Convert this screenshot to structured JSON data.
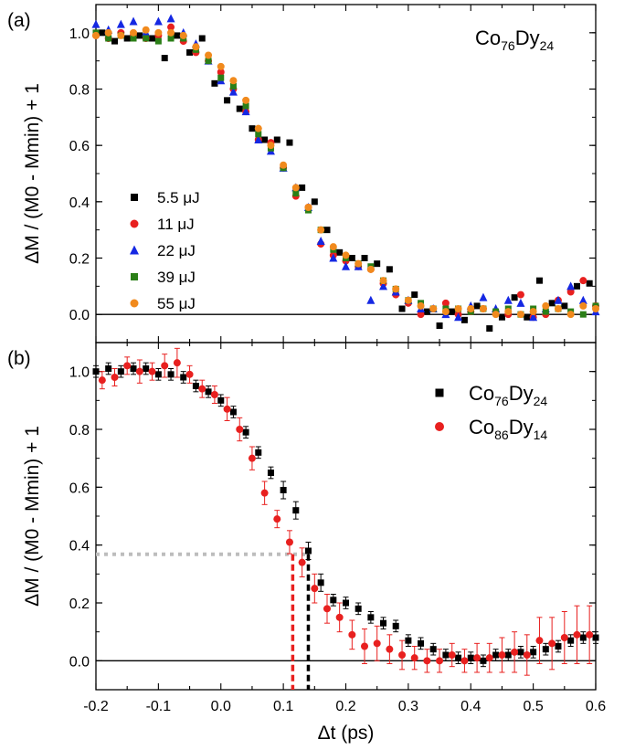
{
  "chart_data": [
    {
      "panel_label": "(a)",
      "type": "scatter",
      "annotation": {
        "base1": "Co",
        "sub1": "76",
        "base2": "Dy",
        "sub2": "24"
      },
      "ylabel": "ΔM / (M0 - Mmin) + 1",
      "xlim": [
        -0.2,
        0.6
      ],
      "ylim": [
        -0.1,
        1.1
      ],
      "yticks": [
        0.0,
        0.2,
        0.4,
        0.6,
        0.8,
        1.0
      ],
      "ytick_labels": [
        "0.0",
        "0.2",
        "0.4",
        "0.6",
        "0.8",
        "1.0"
      ],
      "zero_line": true,
      "legend_position": "middle-left",
      "series": [
        {
          "name": "5.5 μJ",
          "color": "#000000",
          "marker": "square",
          "x": [
            -0.19,
            -0.17,
            -0.15,
            -0.13,
            -0.11,
            -0.09,
            -0.07,
            -0.05,
            -0.03,
            -0.01,
            0.01,
            0.03,
            0.05,
            0.07,
            0.09,
            0.11,
            0.13,
            0.15,
            0.17,
            0.19,
            0.21,
            0.23,
            0.25,
            0.27,
            0.29,
            0.31,
            0.33,
            0.35,
            0.37,
            0.39,
            0.41,
            0.43,
            0.45,
            0.47,
            0.49,
            0.51,
            0.53,
            0.55,
            0.57,
            0.59
          ],
          "y": [
            1.0,
            0.97,
            0.98,
            0.99,
            0.98,
            0.91,
            0.99,
            0.93,
            0.98,
            0.82,
            0.76,
            0.73,
            0.66,
            0.62,
            0.62,
            0.61,
            0.45,
            0.4,
            0.3,
            0.22,
            0.2,
            0.2,
            0.18,
            0.16,
            0.02,
            0.07,
            0.01,
            -0.04,
            0.01,
            -0.02,
            0.03,
            -0.05,
            -0.01,
            0.06,
            -0.01,
            0.12,
            0.04,
            0.03,
            0.1,
            0.11
          ]
        },
        {
          "name": "11 μJ",
          "color": "#e8201f",
          "marker": "circle",
          "x": [
            -0.2,
            -0.18,
            -0.16,
            -0.14,
            -0.12,
            -0.1,
            -0.08,
            -0.06,
            -0.04,
            -0.02,
            0.0,
            0.02,
            0.04,
            0.06,
            0.08,
            0.1,
            0.12,
            0.14,
            0.16,
            0.18,
            0.2,
            0.22,
            0.24,
            0.26,
            0.28,
            0.3,
            0.32,
            0.34,
            0.36,
            0.38,
            0.4,
            0.42,
            0.44,
            0.46,
            0.48,
            0.5,
            0.52,
            0.54,
            0.56,
            0.58,
            0.6
          ],
          "y": [
            0.99,
            0.98,
            1.0,
            0.99,
            0.98,
            0.99,
            1.02,
            0.97,
            0.93,
            0.9,
            0.86,
            0.8,
            0.72,
            0.62,
            0.61,
            0.52,
            0.42,
            0.38,
            0.25,
            0.21,
            0.19,
            0.17,
            0.16,
            0.11,
            0.07,
            0.04,
            0.0,
            0.02,
            0.04,
            0.0,
            0.01,
            0.02,
            0.01,
            0.0,
            0.07,
            -0.01,
            0.0,
            0.05,
            0.08,
            0.12,
            0.03
          ]
        },
        {
          "name": "22 μJ",
          "color": "#1528e3",
          "marker": "triangle",
          "x": [
            -0.2,
            -0.18,
            -0.16,
            -0.14,
            -0.12,
            -0.1,
            -0.08,
            -0.06,
            -0.04,
            -0.02,
            0.0,
            0.02,
            0.04,
            0.06,
            0.08,
            0.1,
            0.12,
            0.14,
            0.16,
            0.18,
            0.2,
            0.22,
            0.24,
            0.26,
            0.28,
            0.3,
            0.32,
            0.34,
            0.36,
            0.38,
            0.4,
            0.42,
            0.44,
            0.46,
            0.48,
            0.5,
            0.52,
            0.54,
            0.56,
            0.58,
            0.6
          ],
          "y": [
            1.03,
            1.01,
            1.03,
            1.04,
            1.0,
            1.04,
            1.05,
            1.0,
            0.96,
            0.9,
            0.83,
            0.79,
            0.72,
            0.62,
            0.58,
            0.52,
            0.45,
            0.38,
            0.26,
            0.2,
            0.17,
            0.17,
            0.05,
            0.1,
            0.08,
            0.05,
            0.02,
            0.02,
            0.0,
            -0.01,
            0.03,
            0.06,
            0.02,
            0.05,
            0.04,
            -0.01,
            0.02,
            0.05,
            0.1,
            0.05,
            0.01
          ]
        },
        {
          "name": "39 μJ",
          "color": "#2b7f17",
          "marker": "square",
          "x": [
            -0.2,
            -0.18,
            -0.16,
            -0.14,
            -0.12,
            -0.1,
            -0.08,
            -0.06,
            -0.04,
            -0.02,
            0.0,
            0.02,
            0.04,
            0.06,
            0.08,
            0.1,
            0.12,
            0.14,
            0.16,
            0.18,
            0.2,
            0.22,
            0.24,
            0.26,
            0.28,
            0.3,
            0.32,
            0.34,
            0.36,
            0.38,
            0.4,
            0.42,
            0.44,
            0.46,
            0.48,
            0.5,
            0.52,
            0.54,
            0.56,
            0.58,
            0.6
          ],
          "y": [
            1.0,
            0.98,
            0.99,
            0.98,
            0.98,
            0.97,
            0.98,
            0.98,
            0.94,
            0.9,
            0.84,
            0.81,
            0.74,
            0.64,
            0.59,
            0.52,
            0.43,
            0.37,
            0.3,
            0.23,
            0.2,
            0.18,
            0.17,
            0.12,
            0.09,
            0.05,
            0.04,
            0.02,
            0.02,
            0.02,
            0.01,
            0.02,
            0.01,
            0.02,
            0.0,
            0.02,
            0.01,
            0.02,
            0.01,
            0.0,
            0.03
          ]
        },
        {
          "name": "55 μJ",
          "color": "#f18a1d",
          "marker": "circle",
          "x": [
            -0.2,
            -0.18,
            -0.16,
            -0.14,
            -0.12,
            -0.1,
            -0.08,
            -0.06,
            -0.04,
            -0.02,
            0.0,
            0.02,
            0.04,
            0.06,
            0.08,
            0.1,
            0.12,
            0.14,
            0.16,
            0.18,
            0.2,
            0.22,
            0.24,
            0.26,
            0.28,
            0.3,
            0.32,
            0.34,
            0.36,
            0.38,
            0.4,
            0.42,
            0.44,
            0.46,
            0.48,
            0.5,
            0.52,
            0.54,
            0.56,
            0.58,
            0.6
          ],
          "y": [
            0.99,
            1.0,
            0.99,
            1.0,
            1.01,
            1.0,
            1.0,
            0.99,
            0.95,
            0.92,
            0.88,
            0.83,
            0.76,
            0.66,
            0.6,
            0.53,
            0.45,
            0.38,
            0.3,
            0.24,
            0.21,
            0.18,
            0.16,
            0.12,
            0.09,
            0.05,
            0.03,
            0.02,
            0.01,
            0.02,
            0.02,
            0.02,
            0.0,
            0.01,
            0.0,
            0.01,
            0.03,
            0.02,
            0.0,
            0.03,
            0.02
          ]
        }
      ]
    },
    {
      "panel_label": "(b)",
      "type": "scatter",
      "xlabel": "Δt (ps)",
      "ylabel": "ΔM / (M0 - Mmin) + 1",
      "xlim": [
        -0.2,
        0.6
      ],
      "ylim": [
        -0.1,
        1.1
      ],
      "xticks": [
        -0.2,
        -0.1,
        0.0,
        0.1,
        0.2,
        0.3,
        0.4,
        0.5,
        0.6
      ],
      "xtick_labels": [
        "-0.2",
        "-0.1",
        "0.0",
        "0.1",
        "0.2",
        "0.3",
        "0.4",
        "0.5",
        "0.6"
      ],
      "yticks": [
        0.0,
        0.2,
        0.4,
        0.6,
        0.8,
        1.0
      ],
      "ytick_labels": [
        "0.0",
        "0.2",
        "0.4",
        "0.6",
        "0.8",
        "1.0"
      ],
      "zero_line": true,
      "legend_position": "top-right",
      "threshold_y": 0.368,
      "crossings": [
        {
          "x": 0.115,
          "color": "#e8201f"
        },
        {
          "x": 0.14,
          "color": "#000000"
        }
      ],
      "threshold_color": "#bdbdbd",
      "series": [
        {
          "name_base": "Co",
          "name_sub1": "76",
          "name_base2": "Dy",
          "name_sub2": "24",
          "color": "#000000",
          "marker": "square",
          "x": [
            -0.2,
            -0.18,
            -0.16,
            -0.14,
            -0.12,
            -0.1,
            -0.08,
            -0.06,
            -0.04,
            -0.02,
            0.0,
            0.02,
            0.04,
            0.06,
            0.08,
            0.1,
            0.12,
            0.14,
            0.16,
            0.18,
            0.2,
            0.22,
            0.24,
            0.26,
            0.28,
            0.3,
            0.32,
            0.34,
            0.36,
            0.38,
            0.4,
            0.42,
            0.44,
            0.46,
            0.48,
            0.5,
            0.52,
            0.54,
            0.56,
            0.58,
            0.6
          ],
          "y": [
            1.0,
            1.01,
            1.0,
            1.01,
            1.01,
            0.99,
            0.99,
            0.98,
            0.95,
            0.93,
            0.9,
            0.86,
            0.79,
            0.72,
            0.65,
            0.59,
            0.52,
            0.38,
            0.27,
            0.21,
            0.2,
            0.18,
            0.15,
            0.13,
            0.12,
            0.07,
            0.06,
            0.04,
            0.02,
            0.01,
            0.01,
            0.0,
            0.02,
            0.02,
            0.03,
            0.03,
            0.04,
            0.05,
            0.07,
            0.08,
            0.08
          ],
          "err": [
            0.02,
            0.02,
            0.02,
            0.02,
            0.02,
            0.02,
            0.02,
            0.02,
            0.02,
            0.02,
            0.02,
            0.02,
            0.02,
            0.02,
            0.02,
            0.03,
            0.03,
            0.03,
            0.03,
            0.02,
            0.02,
            0.02,
            0.02,
            0.02,
            0.02,
            0.02,
            0.02,
            0.02,
            0.02,
            0.02,
            0.02,
            0.02,
            0.02,
            0.02,
            0.02,
            0.02,
            0.02,
            0.02,
            0.02,
            0.02,
            0.02
          ]
        },
        {
          "name_base": "Co",
          "name_sub1": "86",
          "name_base2": "Dy",
          "name_sub2": "14",
          "color": "#e8201f",
          "marker": "circle",
          "x": [
            -0.19,
            -0.17,
            -0.15,
            -0.13,
            -0.11,
            -0.09,
            -0.07,
            -0.05,
            -0.03,
            -0.01,
            0.01,
            0.03,
            0.05,
            0.07,
            0.09,
            0.11,
            0.13,
            0.15,
            0.17,
            0.19,
            0.21,
            0.23,
            0.25,
            0.27,
            0.29,
            0.31,
            0.33,
            0.35,
            0.37,
            0.39,
            0.41,
            0.43,
            0.45,
            0.47,
            0.49,
            0.51,
            0.53,
            0.55,
            0.57,
            0.59
          ],
          "y": [
            0.97,
            0.98,
            1.02,
            1.0,
            1.0,
            1.02,
            1.03,
            0.99,
            0.94,
            0.92,
            0.87,
            0.8,
            0.7,
            0.58,
            0.49,
            0.41,
            0.34,
            0.25,
            0.18,
            0.15,
            0.09,
            0.05,
            0.06,
            0.04,
            0.02,
            0.01,
            0.0,
            0.0,
            0.02,
            0.0,
            0.01,
            0.01,
            0.02,
            0.03,
            0.02,
            0.07,
            0.06,
            0.08,
            0.09,
            0.09
          ],
          "err": [
            0.03,
            0.03,
            0.03,
            0.04,
            0.03,
            0.04,
            0.05,
            0.03,
            0.03,
            0.03,
            0.04,
            0.04,
            0.04,
            0.04,
            0.03,
            0.04,
            0.05,
            0.05,
            0.05,
            0.05,
            0.05,
            0.06,
            0.06,
            0.05,
            0.05,
            0.04,
            0.04,
            0.04,
            0.04,
            0.04,
            0.05,
            0.05,
            0.06,
            0.07,
            0.07,
            0.08,
            0.09,
            0.09,
            0.1,
            0.1
          ]
        }
      ]
    }
  ]
}
